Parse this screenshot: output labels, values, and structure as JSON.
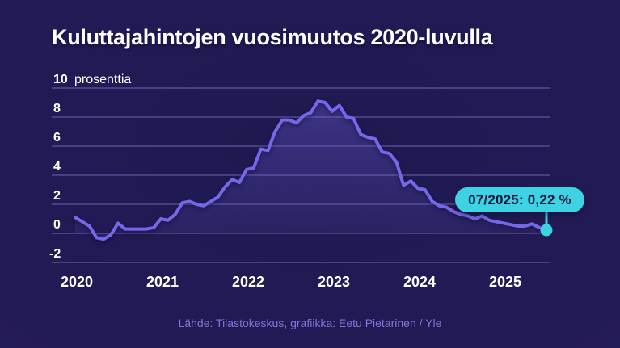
{
  "chart_data": {
    "type": "area",
    "title": "Kuluttajahintojen vuosimuutos 2020-luvulla",
    "unit_label": "prosenttia",
    "xlabel": "",
    "ylabel": "prosenttia",
    "x_frequency": "monthly",
    "x_start": "01/2020",
    "x_end": "07/2025",
    "values": [
      1.1,
      0.8,
      0.5,
      -0.3,
      -0.4,
      -0.1,
      0.7,
      0.3,
      0.3,
      0.3,
      0.3,
      0.4,
      1.0,
      0.9,
      1.3,
      2.1,
      2.2,
      2.0,
      1.9,
      2.2,
      2.5,
      3.2,
      3.7,
      3.5,
      4.4,
      4.5,
      5.8,
      5.7,
      7.0,
      7.8,
      7.8,
      7.6,
      8.1,
      8.3,
      9.1,
      9.0,
      8.4,
      8.8,
      8.0,
      7.9,
      6.8,
      6.6,
      6.5,
      5.6,
      5.5,
      4.9,
      3.3,
      3.6,
      3.1,
      3.0,
      2.2,
      1.9,
      1.8,
      1.5,
      1.3,
      1.2,
      1.0,
      1.2,
      0.9,
      0.8,
      0.7,
      0.6,
      0.5,
      0.5,
      0.65,
      0.4,
      0.22
    ],
    "yticks": [
      10,
      8,
      6,
      4,
      2,
      0,
      -2
    ],
    "xticks": [
      "2020",
      "2021",
      "2022",
      "2023",
      "2024",
      "2025"
    ],
    "ylim": [
      -2.9,
      10.5
    ],
    "grid": true,
    "legend": "none",
    "annotation": {
      "label": "07/2025: 0,22 %",
      "month_index": 66,
      "value": 0.22
    },
    "colors": {
      "line": "#7567ea",
      "accent": "#3ed2e2",
      "annotation_text": "#12123a",
      "grid": "#978edc",
      "text": "#ffffff",
      "source_text": "#8075da",
      "background_center": "#1f1950",
      "background_edge": "#2b2063"
    }
  },
  "source": "Lähde: Tilastokeskus, grafiikka: Eetu Pietarinen / Yle"
}
